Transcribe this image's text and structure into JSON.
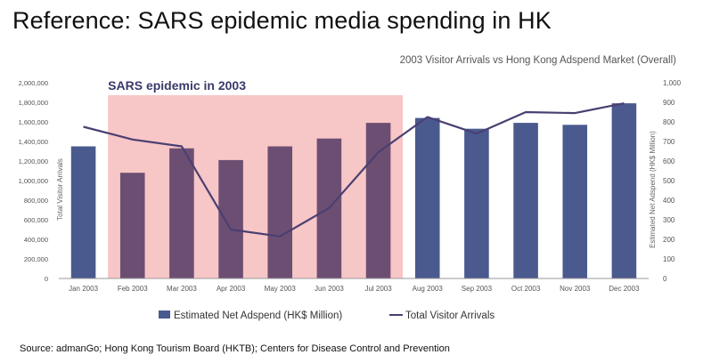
{
  "page": {
    "title": "Reference: SARS epidemic media spending in HK",
    "source": "Source: admanGo; Hong Kong Tourism Board (HKTB); Centers for Disease Control and Prevention"
  },
  "chart_data": {
    "type": "bar",
    "title": "2003 Visitor Arrivals vs Hong Kong Adspend Market (Overall)",
    "annotation": "SARS epidemic in 2003",
    "highlight_range": [
      "Feb 2003",
      "Jul 2003"
    ],
    "categories": [
      "Jan 2003",
      "Feb 2003",
      "Mar 2003",
      "Apr 2003",
      "May 2003",
      "Jun 2003",
      "Jul 2003",
      "Aug 2003",
      "Sep 2003",
      "Oct 2003",
      "Nov 2003",
      "Dec 2003"
    ],
    "series": [
      {
        "name": "Estimated Net Adspend (HK$ Million)",
        "type": "bar",
        "axis": "right",
        "color": "#4a5a8e",
        "values": [
          675,
          540,
          665,
          605,
          675,
          715,
          795,
          820,
          765,
          795,
          785,
          895
        ]
      },
      {
        "name": "Total Visitor Arrivals",
        "type": "line",
        "axis": "left",
        "color": "#4a3f72",
        "values": [
          1550000,
          1420000,
          1350000,
          500000,
          430000,
          720000,
          1290000,
          1650000,
          1480000,
          1700000,
          1690000,
          1790000
        ]
      }
    ],
    "ylabel_left": "Total Visitor Arrivals",
    "ylabel_right": "Estimated Net Adspend (HK$ Million)",
    "ylim_left": [
      0,
      2000000
    ],
    "ylim_right": [
      0,
      1000
    ],
    "yticks_left": [
      "0",
      "200,000",
      "400,000",
      "600,000",
      "800,000",
      "1,000,000",
      "1,200,000",
      "1,400,000",
      "1,600,000",
      "1,800,000",
      "2,000,000"
    ],
    "yticks_right": [
      "0",
      "100",
      "200",
      "300",
      "400",
      "500",
      "600",
      "700",
      "800",
      "900",
      "1,000"
    ],
    "legend_position": "bottom",
    "grid": false,
    "colors": {
      "highlight": "#f7c6c6",
      "bar": "#4a5a8e",
      "line": "#4a3f72"
    }
  }
}
